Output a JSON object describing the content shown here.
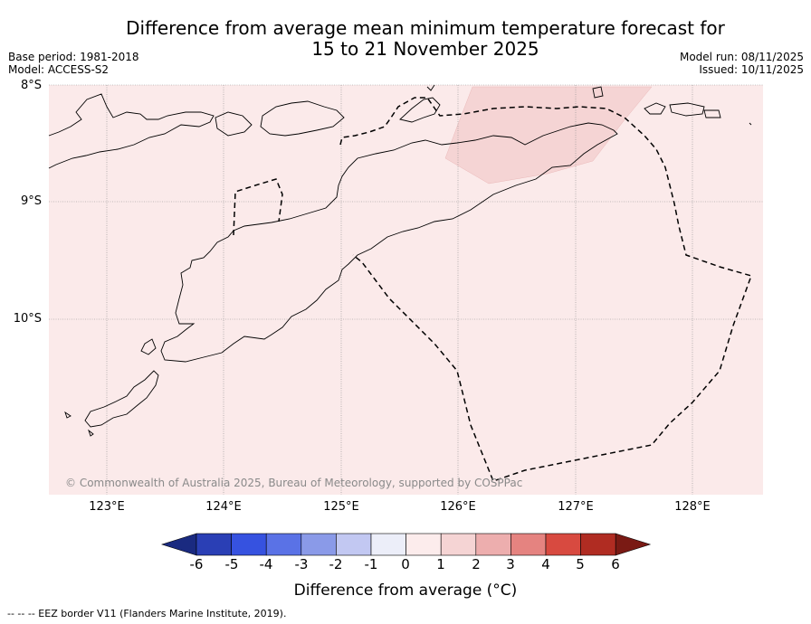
{
  "title_line1": "Difference from average mean minimum temperature forecast for",
  "title_line2": "15 to 21 November 2025",
  "base_period": "Base period: 1981-2018",
  "model": "Model: ACCESS-S2",
  "model_run": "Model run: 08/11/2025",
  "issued": "Issued: 10/11/2025",
  "lat_labels": [
    "8°S",
    "9°S",
    "10°S"
  ],
  "lon_labels": [
    "123°E",
    "124°E",
    "125°E",
    "126°E",
    "127°E",
    "128°E"
  ],
  "copyright": "© Commonwealth of Australia 2025, Bureau of Meteorology, supported by COSPPac",
  "colorbar": {
    "ticks": [
      "-6",
      "-5",
      "-4",
      "-3",
      "-2",
      "-1",
      "0",
      "1",
      "2",
      "3",
      "4",
      "5",
      "6"
    ],
    "colors": [
      "#1a2a80",
      "#2a3fb5",
      "#3652e0",
      "#5a72e6",
      "#8a9ae8",
      "#c2c8f2",
      "#eceef9",
      "#fcecec",
      "#f5d4d4",
      "#edaeae",
      "#e58380",
      "#d84a40",
      "#b02c22",
      "#7a1a14"
    ],
    "label": "Difference from average (°C)"
  },
  "legend_note": "-- -- -- EEZ border V11 (Flanders Marine Institute, 2019).",
  "map": {
    "background_class": "0 to 1",
    "background_color": "#fbeaea",
    "warm_patch_class": "1 to 2",
    "warm_patch_color": "#f5d4d4"
  }
}
